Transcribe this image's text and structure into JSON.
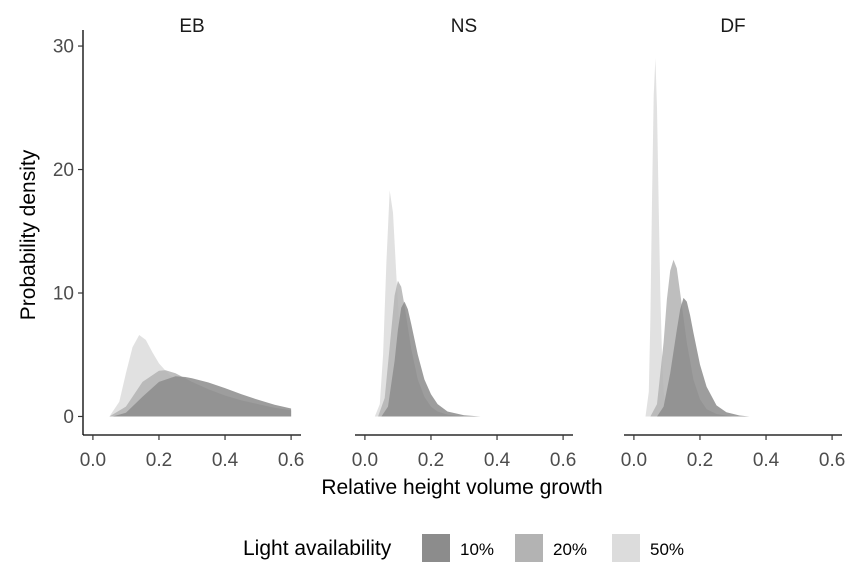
{
  "chart_data": {
    "type": "area",
    "panels": [
      "EB",
      "NS",
      "DF"
    ],
    "xlabel": "Relative height volume growth",
    "ylabel": "Probability density",
    "xlim": [
      -0.03,
      0.63
    ],
    "ylim": [
      -1.5,
      31.3
    ],
    "xticks": [
      0.0,
      0.2,
      0.4,
      0.6
    ],
    "xtick_labels": [
      "0.0",
      "0.2",
      "0.4",
      "0.6"
    ],
    "yticks": [
      0,
      10,
      20,
      30
    ],
    "ytick_labels": [
      "0",
      "10",
      "20",
      "30"
    ],
    "grid": false,
    "legend": {
      "title": "Light availability",
      "position": "bottom",
      "items": [
        {
          "label": "10%",
          "color": "#8c8c8c"
        },
        {
          "label": "20%",
          "color": "#b3b3b3"
        },
        {
          "label": "50%",
          "color": "#dcdcdc"
        }
      ]
    },
    "series": [
      {
        "name": "50%",
        "panel": "EB",
        "color": "#dcdcdc",
        "x": [
          0.05,
          0.08,
          0.1,
          0.12,
          0.14,
          0.16,
          0.18,
          0.2,
          0.22,
          0.24,
          0.26,
          0.3,
          0.35,
          0.4,
          0.5,
          0.6
        ],
        "y": [
          0,
          1.2,
          3.5,
          5.6,
          6.6,
          6.2,
          5.2,
          4.3,
          3.7,
          3.2,
          2.9,
          2.3,
          1.8,
          1.4,
          0.8,
          0.45
        ]
      },
      {
        "name": "20%",
        "panel": "EB",
        "color": "#b3b3b3",
        "x": [
          0.05,
          0.1,
          0.15,
          0.2,
          0.22,
          0.25,
          0.3,
          0.35,
          0.4,
          0.45,
          0.5,
          0.55,
          0.6
        ],
        "y": [
          0,
          0.8,
          2.8,
          3.7,
          3.75,
          3.5,
          2.8,
          2.2,
          1.7,
          1.3,
          1.0,
          0.7,
          0.5
        ]
      },
      {
        "name": "10%",
        "panel": "EB",
        "color": "#8c8c8c",
        "x": [
          0.06,
          0.1,
          0.15,
          0.2,
          0.25,
          0.28,
          0.3,
          0.35,
          0.4,
          0.45,
          0.5,
          0.55,
          0.6
        ],
        "y": [
          0,
          0.3,
          1.6,
          2.8,
          3.25,
          3.2,
          3.1,
          2.75,
          2.3,
          1.8,
          1.35,
          0.95,
          0.65
        ]
      },
      {
        "name": "50%",
        "panel": "NS",
        "color": "#dcdcdc",
        "x": [
          0.03,
          0.045,
          0.055,
          0.065,
          0.075,
          0.085,
          0.095,
          0.105,
          0.115,
          0.125,
          0.14,
          0.16,
          0.18,
          0.2
        ],
        "y": [
          0,
          1.0,
          5.0,
          12.5,
          18.3,
          16.5,
          11.5,
          7.0,
          4.0,
          2.2,
          0.9,
          0.3,
          0.1,
          0
        ]
      },
      {
        "name": "20%",
        "panel": "NS",
        "color": "#b3b3b3",
        "x": [
          0.04,
          0.06,
          0.08,
          0.09,
          0.1,
          0.11,
          0.12,
          0.14,
          0.16,
          0.18,
          0.2,
          0.22,
          0.25,
          0.3
        ],
        "y": [
          0,
          1.5,
          7.0,
          9.8,
          11.0,
          10.5,
          9.0,
          5.5,
          3.0,
          1.6,
          0.8,
          0.4,
          0.15,
          0
        ]
      },
      {
        "name": "10%",
        "panel": "NS",
        "color": "#8c8c8c",
        "x": [
          0.05,
          0.07,
          0.09,
          0.1,
          0.11,
          0.12,
          0.13,
          0.14,
          0.16,
          0.18,
          0.2,
          0.22,
          0.25,
          0.3,
          0.35
        ],
        "y": [
          0,
          0.8,
          4.5,
          7.0,
          8.8,
          9.3,
          8.7,
          7.5,
          5.0,
          3.0,
          1.8,
          1.0,
          0.4,
          0.1,
          0
        ]
      },
      {
        "name": "50%",
        "panel": "DF",
        "color": "#dcdcdc",
        "x": [
          0.035,
          0.045,
          0.05,
          0.055,
          0.06,
          0.065,
          0.07,
          0.075,
          0.08,
          0.085,
          0.09,
          0.1,
          0.11
        ],
        "y": [
          0,
          2.0,
          8.0,
          18.0,
          26.0,
          29.0,
          25.0,
          17.0,
          10.0,
          5.0,
          2.0,
          0.3,
          0
        ]
      },
      {
        "name": "20%",
        "panel": "DF",
        "color": "#b3b3b3",
        "x": [
          0.05,
          0.07,
          0.09,
          0.1,
          0.11,
          0.12,
          0.13,
          0.14,
          0.16,
          0.18,
          0.2,
          0.22,
          0.25,
          0.3
        ],
        "y": [
          0,
          1.0,
          6.0,
          9.5,
          11.8,
          12.7,
          12.0,
          10.0,
          6.0,
          3.0,
          1.4,
          0.6,
          0.2,
          0
        ]
      },
      {
        "name": "10%",
        "panel": "DF",
        "color": "#8c8c8c",
        "x": [
          0.07,
          0.09,
          0.11,
          0.13,
          0.14,
          0.15,
          0.16,
          0.17,
          0.18,
          0.2,
          0.22,
          0.25,
          0.28,
          0.32,
          0.35
        ],
        "y": [
          0,
          0.8,
          3.5,
          7.0,
          8.7,
          9.6,
          9.3,
          8.2,
          6.8,
          4.2,
          2.4,
          0.9,
          0.35,
          0.08,
          0
        ]
      }
    ]
  }
}
